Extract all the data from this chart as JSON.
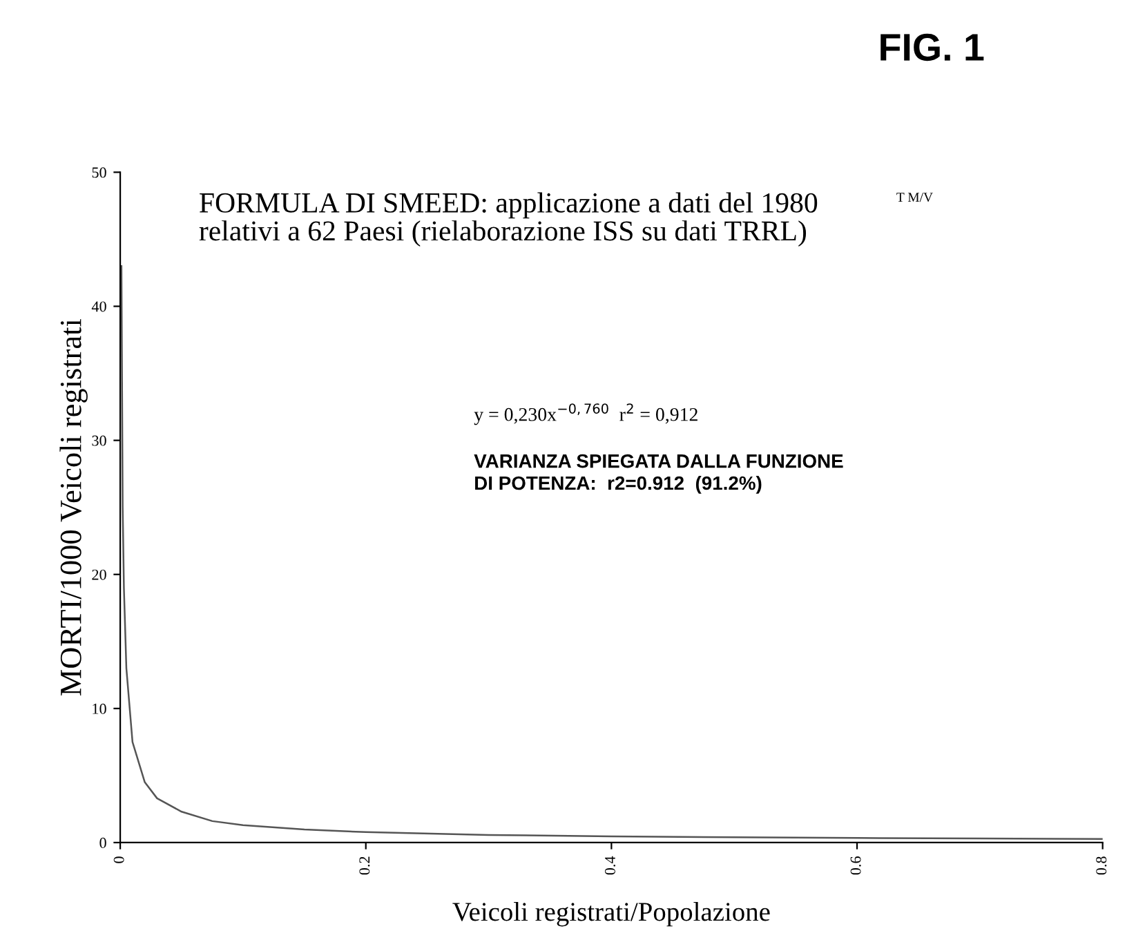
{
  "chart_data": {
    "type": "line",
    "title": "FIG. 1",
    "xlabel": "Veicoli registrati/Popolazione",
    "ylabel": "MORTI/1000 Veicoli registrati",
    "x": [
      0.001,
      0.002,
      0.003,
      0.005,
      0.01,
      0.02,
      0.03,
      0.05,
      0.075,
      0.1,
      0.15,
      0.2,
      0.3,
      0.4,
      0.5,
      0.6,
      0.7,
      0.8
    ],
    "series": [
      {
        "color": "#555555",
        "values": [
          43,
          25,
          19,
          13,
          7.5,
          4.5,
          3.3,
          2.3,
          1.6,
          1.3,
          0.97,
          0.78,
          0.57,
          0.46,
          0.39,
          0.34,
          0.3,
          0.27
        ]
      }
    ],
    "xlim": [
      0,
      0.8
    ],
    "ylim": [
      0,
      50
    ],
    "xticks": [
      0,
      0.2,
      0.4,
      0.6,
      0.8
    ],
    "yticks": [
      0,
      10,
      20,
      30,
      40,
      50
    ],
    "grid": false,
    "legend": false,
    "marker": "none",
    "line_style": "solid",
    "annotations": [
      "FORMULA DI SMEED: applicazione a dati del 1980\nrelativi a 62 Paesi (rielaborazione ISS su dati TRRL)",
      "T M/V",
      "y = 0,230x$^{−0,760}$  r$^{2}$ = 0,912",
      "VARIANZA SPIEGATA DALLA FUNZIONE\nDI POTENZA:  r2=0.912  (91.2%)"
    ]
  }
}
